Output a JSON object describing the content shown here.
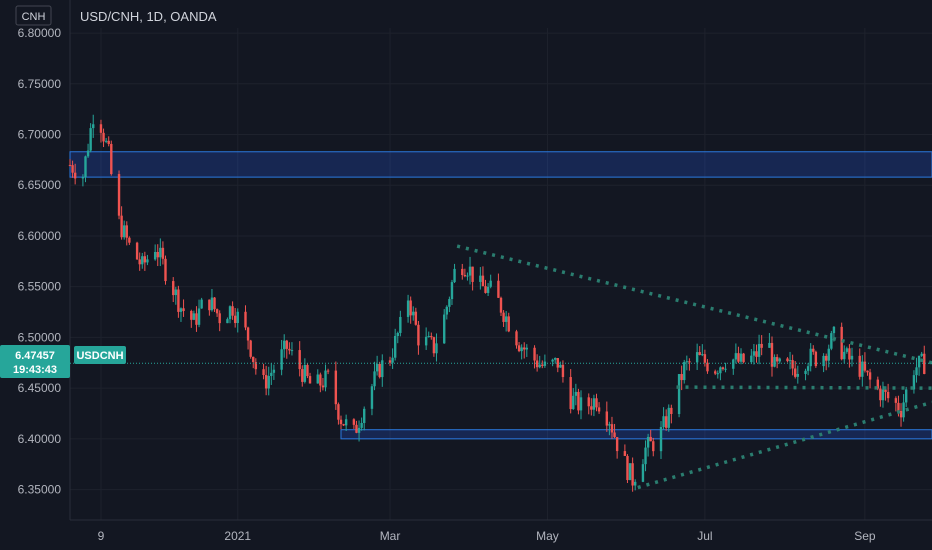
{
  "header": {
    "currency_label": "CNH",
    "title": "USD/CNH, 1D, OANDA"
  },
  "colors": {
    "background": "#131722",
    "up": "#26a69a",
    "down": "#ef5350",
    "zone_fill": "#2962ff",
    "zone_stroke": "#2a79e0",
    "trendline": "#2a7d6f",
    "price_tag": "#26a69a"
  },
  "price_tag": {
    "price": "6.47457",
    "countdown": "19:43:43",
    "symbol": "USDCNH"
  },
  "chart_data": {
    "type": "candlestick",
    "title": "USD/CNH, 1D, OANDA",
    "ylim": [
      6.32,
      6.805
    ],
    "y_ticks": [
      6.35,
      6.4,
      6.45,
      6.5,
      6.55,
      6.6,
      6.65,
      6.7,
      6.75,
      6.8
    ],
    "y_tick_labels": [
      "6.35000",
      "6.40000",
      "6.45000",
      "6.50000",
      "6.55000",
      "6.60000",
      "6.65000",
      "6.70000",
      "6.75000",
      "6.80000"
    ],
    "x_range": [
      "2020-10-28",
      "2021-09-27"
    ],
    "x_ticks": [
      {
        "date": "2020-11-09",
        "label": "9"
      },
      {
        "date": "2021-01-01",
        "label": "2021"
      },
      {
        "date": "2021-03-01",
        "label": "Mar"
      },
      {
        "date": "2021-05-01",
        "label": "May"
      },
      {
        "date": "2021-07-01",
        "label": "Jul"
      },
      {
        "date": "2021-09-01",
        "label": "Sep"
      }
    ],
    "current_price": 6.47457,
    "zones": [
      {
        "y_low": 6.658,
        "y_high": 6.683,
        "x_start": "2020-10-28",
        "x_end": "2021-09-27"
      },
      {
        "y_low": 6.4,
        "y_high": 6.409,
        "x_start": "2021-02-10",
        "x_end": "2021-09-27"
      }
    ],
    "trendlines": [
      {
        "points": [
          [
            "2021-03-27",
            6.59
          ],
          [
            "2021-09-27",
            6.475
          ]
        ]
      },
      {
        "points": [
          [
            "2021-06-20",
            6.451
          ],
          [
            "2021-09-27",
            6.45
          ]
        ]
      },
      {
        "points": [
          [
            "2021-06-05",
            6.352
          ],
          [
            "2021-09-27",
            6.436
          ]
        ]
      }
    ],
    "anchors": [
      [
        "2020-10-28",
        6.67
      ],
      [
        "2020-11-02",
        6.66
      ],
      [
        "2020-11-06",
        6.72
      ],
      [
        "2020-11-09",
        6.71
      ],
      [
        "2020-11-12",
        6.68
      ],
      [
        "2020-11-15",
        6.62
      ],
      [
        "2020-11-20",
        6.59
      ],
      [
        "2020-11-25",
        6.57
      ],
      [
        "2020-11-30",
        6.59
      ],
      [
        "2020-12-05",
        6.56
      ],
      [
        "2020-12-10",
        6.53
      ],
      [
        "2020-12-15",
        6.515
      ],
      [
        "2020-12-20",
        6.54
      ],
      [
        "2020-12-25",
        6.52
      ],
      [
        "2020-12-30",
        6.53
      ],
      [
        "2021-01-05",
        6.5
      ],
      [
        "2021-01-10",
        6.45
      ],
      [
        "2021-01-15",
        6.47
      ],
      [
        "2021-01-20",
        6.49
      ],
      [
        "2021-01-25",
        6.47
      ],
      [
        "2021-01-30",
        6.45
      ],
      [
        "2021-02-05",
        6.46
      ],
      [
        "2021-02-10",
        6.42
      ],
      [
        "2021-02-15",
        6.405
      ],
      [
        "2021-02-20",
        6.44
      ],
      [
        "2021-02-25",
        6.47
      ],
      [
        "2021-03-01",
        6.48
      ],
      [
        "2021-03-05",
        6.51
      ],
      [
        "2021-03-08",
        6.54
      ],
      [
        "2021-03-12",
        6.5
      ],
      [
        "2021-03-18",
        6.49
      ],
      [
        "2021-03-22",
        6.52
      ],
      [
        "2021-03-27",
        6.575
      ],
      [
        "2021-03-31",
        6.57
      ],
      [
        "2021-04-05",
        6.55
      ],
      [
        "2021-04-10",
        6.545
      ],
      [
        "2021-04-15",
        6.52
      ],
      [
        "2021-04-20",
        6.495
      ],
      [
        "2021-04-25",
        6.48
      ],
      [
        "2021-04-30",
        6.47
      ],
      [
        "2021-05-05",
        6.475
      ],
      [
        "2021-05-10",
        6.44
      ],
      [
        "2021-05-15",
        6.43
      ],
      [
        "2021-05-20",
        6.44
      ],
      [
        "2021-05-25",
        6.42
      ],
      [
        "2021-05-30",
        6.38
      ],
      [
        "2021-06-03",
        6.36
      ],
      [
        "2021-06-08",
        6.39
      ],
      [
        "2021-06-13",
        6.4
      ],
      [
        "2021-06-18",
        6.43
      ],
      [
        "2021-06-23",
        6.47
      ],
      [
        "2021-06-28",
        6.48
      ],
      [
        "2021-07-05",
        6.47
      ],
      [
        "2021-07-10",
        6.48
      ],
      [
        "2021-07-15",
        6.475
      ],
      [
        "2021-07-20",
        6.48
      ],
      [
        "2021-07-25",
        6.5
      ],
      [
        "2021-07-28",
        6.47
      ],
      [
        "2021-08-05",
        6.47
      ],
      [
        "2021-08-10",
        6.48
      ],
      [
        "2021-08-15",
        6.48
      ],
      [
        "2021-08-20",
        6.5
      ],
      [
        "2021-08-25",
        6.48
      ],
      [
        "2021-08-30",
        6.47
      ],
      [
        "2021-09-05",
        6.45
      ],
      [
        "2021-09-10",
        6.44
      ],
      [
        "2021-09-15",
        6.43
      ],
      [
        "2021-09-20",
        6.47
      ],
      [
        "2021-09-24",
        6.4746
      ]
    ]
  }
}
